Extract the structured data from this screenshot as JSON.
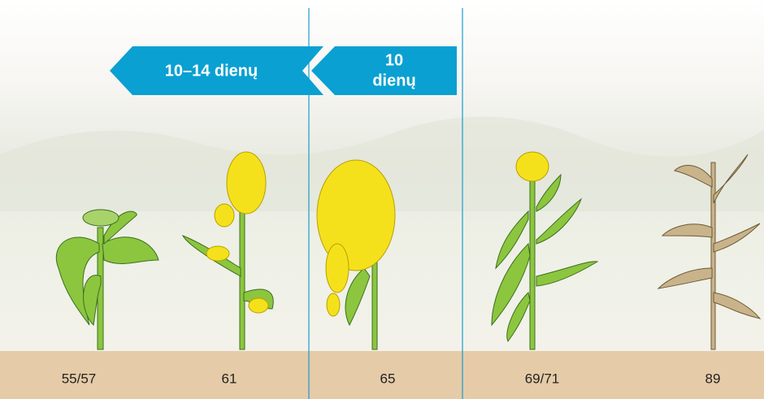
{
  "arrows": [
    {
      "lines": [
        "10–14 dienų"
      ]
    },
    {
      "lines": [
        "10",
        "dienų"
      ]
    }
  ],
  "stages": [
    "55/57",
    "61",
    "65",
    "69/71",
    "89"
  ]
}
